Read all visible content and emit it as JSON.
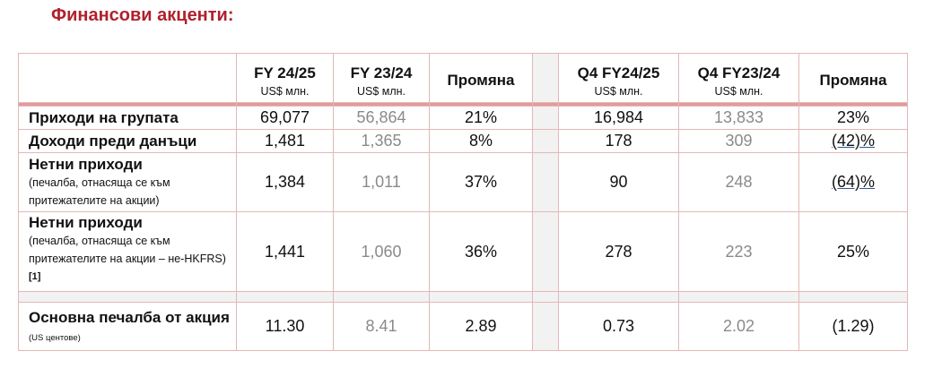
{
  "title": "Финансови акценти:",
  "columns": [
    {
      "period": "FY 24/25",
      "unit": "US$ млн."
    },
    {
      "period": "FY 23/24",
      "unit": "US$ млн."
    },
    {
      "period": "Промяна",
      "unit": ""
    },
    {
      "period": "Q4 FY24/25",
      "unit": "US$ млн."
    },
    {
      "period": "Q4 FY23/24",
      "unit": "US$ млн."
    },
    {
      "period": "Промяна",
      "unit": ""
    }
  ],
  "rows": [
    {
      "label": "Приходи на групата",
      "sub": "",
      "values": [
        "69,077",
        "56,864",
        "21%",
        "16,984",
        "13,833",
        "23%"
      ]
    },
    {
      "label": "Доходи преди данъци",
      "sub": "",
      "values": [
        "1,481",
        "1,365",
        "8%",
        "178",
        "309",
        "(42)%"
      ]
    },
    {
      "label": "Нетни приходи",
      "sub": "(печалба, отнасяща се към притежателите на акции)",
      "values": [
        "1,384",
        "1,011",
        "37%",
        "90",
        "248",
        "(64)%"
      ]
    },
    {
      "label": "Нетни приходи",
      "sub": "(печалба, отнасяща се към притежателите на акции – не-HKFRS)",
      "footnote": "[1]",
      "values": [
        "1,441",
        "1,060",
        "36%",
        "278",
        "223",
        "25%"
      ]
    },
    {
      "label": "Основна печалба от акция",
      "sub": "(US центове)",
      "values": [
        "11.30",
        "8.41",
        "2.89",
        "0.73",
        "2.02",
        "(1.29)"
      ]
    }
  ]
}
